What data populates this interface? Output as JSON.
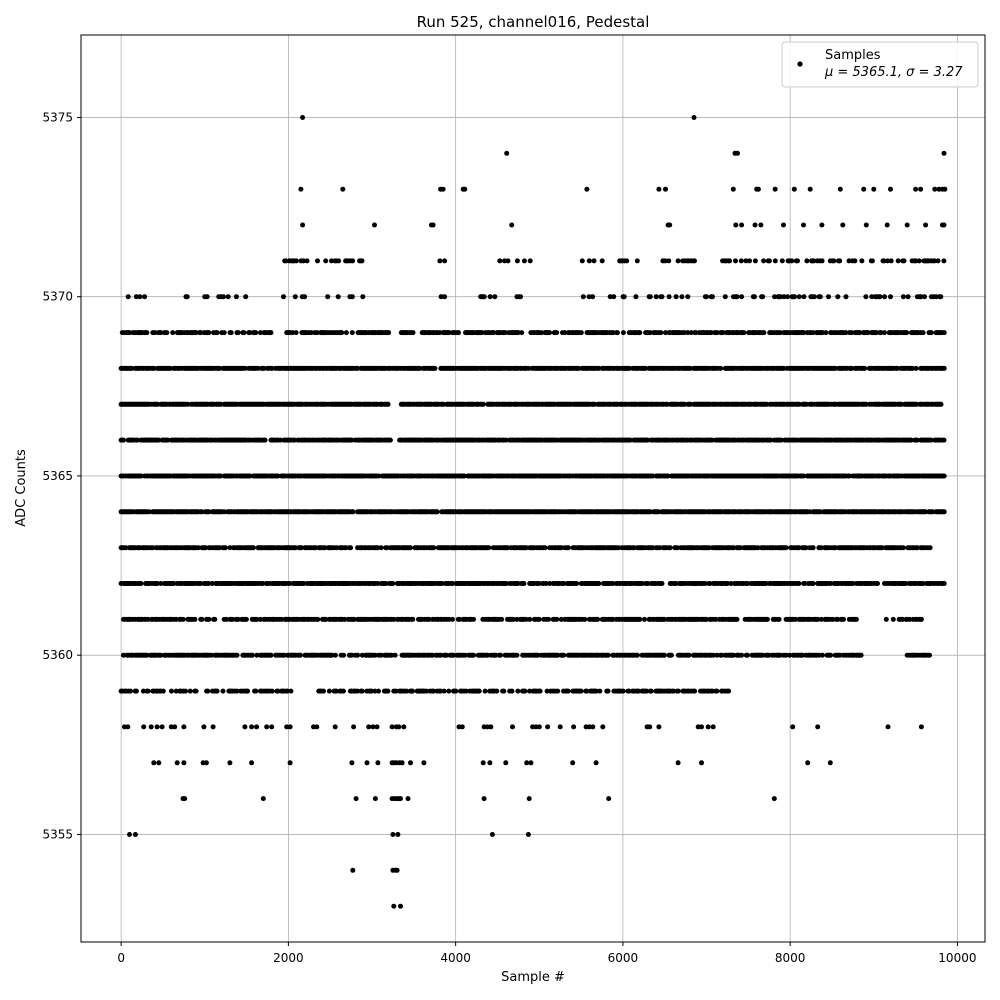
{
  "chart_data": {
    "type": "scatter",
    "title": "Run 525, channel016, Pedestal",
    "xlabel": "Sample #",
    "ylabel": "ADC Counts",
    "xlim": [
      -480,
      10330
    ],
    "ylim": [
      5352.0,
      5377.3
    ],
    "xticks": [
      0,
      2000,
      4000,
      6000,
      8000,
      10000
    ],
    "yticks": [
      5355,
      5360,
      5365,
      5370,
      5375
    ],
    "grid": true,
    "legend_position": "top-right",
    "marker_color": "#000000",
    "series": [
      {
        "name": "Samples",
        "legend_stats": "μ = 5365.1, σ = 3.27",
        "levels": [
          {
            "y": 5370,
            "segments": [
              [
                0,
                300
              ],
              [
                650,
                1500
              ],
              [
                1900,
                2250
              ],
              [
                2400,
                2900
              ],
              [
                3700,
                3900
              ],
              [
                4300,
                4900
              ],
              [
                5400,
                6200
              ],
              [
                6300,
                7700
              ],
              [
                7800,
                9850
              ]
            ],
            "density": 0.22
          },
          {
            "y": 5369,
            "segments": [
              [
                0,
                1800
              ],
              [
                1980,
                3200
              ],
              [
                3350,
                3500
              ],
              [
                3600,
                4800
              ],
              [
                4900,
                9850
              ]
            ],
            "density": 0.6
          },
          {
            "y": 5368,
            "segments": [
              [
                0,
                9850
              ]
            ],
            "density": 0.8
          },
          {
            "y": 5367,
            "segments": [
              [
                0,
                3200
              ],
              [
                3350,
                9850
              ]
            ],
            "density": 0.85
          },
          {
            "y": 5366,
            "segments": [
              [
                0,
                3220
              ],
              [
                3330,
                9850
              ]
            ],
            "density": 0.85
          },
          {
            "y": 5365,
            "segments": [
              [
                0,
                9850
              ]
            ],
            "density": 0.88
          },
          {
            "y": 5364,
            "segments": [
              [
                0,
                9850
              ]
            ],
            "density": 0.85
          },
          {
            "y": 5363,
            "segments": [
              [
                0,
                9700
              ]
            ],
            "density": 0.7
          },
          {
            "y": 5362,
            "segments": [
              [
                0,
                9850
              ]
            ],
            "density": 0.72
          },
          {
            "y": 5361,
            "segments": [
              [
                0,
                8800
              ],
              [
                9150,
                9600
              ]
            ],
            "density": 0.6
          },
          {
            "y": 5360,
            "segments": [
              [
                0,
                8900
              ],
              [
                9400,
                9700
              ]
            ],
            "density": 0.6
          },
          {
            "y": 5359,
            "segments": [
              [
                0,
                2050
              ],
              [
                2350,
                7300
              ]
            ],
            "density": 0.5
          },
          {
            "y": 5371,
            "segments": [
              [
                1900,
                2900
              ],
              [
                3700,
                4000
              ],
              [
                4500,
                4900
              ],
              [
                5500,
                6200
              ],
              [
                6450,
                7000
              ],
              [
                7150,
                9850
              ]
            ],
            "density": 0.3
          }
        ],
        "points": [
          [
            2170,
            5375
          ],
          [
            6850,
            5375
          ],
          [
            4610,
            5374
          ],
          [
            7340,
            5374
          ],
          [
            7370,
            5374
          ],
          [
            9840,
            5374
          ],
          [
            2150,
            5373
          ],
          [
            2650,
            5373
          ],
          [
            3820,
            5373
          ],
          [
            3850,
            5373
          ],
          [
            4090,
            5373
          ],
          [
            4110,
            5373
          ],
          [
            5570,
            5373
          ],
          [
            6430,
            5373
          ],
          [
            6510,
            5373
          ],
          [
            7320,
            5373
          ],
          [
            7600,
            5373
          ],
          [
            7620,
            5373
          ],
          [
            7820,
            5373
          ],
          [
            8050,
            5373
          ],
          [
            8240,
            5373
          ],
          [
            8600,
            5373
          ],
          [
            8880,
            5373
          ],
          [
            9000,
            5373
          ],
          [
            9200,
            5373
          ],
          [
            9500,
            5373
          ],
          [
            9560,
            5373
          ],
          [
            9730,
            5373
          ],
          [
            9780,
            5373
          ],
          [
            9820,
            5373
          ],
          [
            9850,
            5373
          ],
          [
            2170,
            5372
          ],
          [
            3030,
            5372
          ],
          [
            3710,
            5372
          ],
          [
            3730,
            5372
          ],
          [
            4670,
            5372
          ],
          [
            6540,
            5372
          ],
          [
            6560,
            5372
          ],
          [
            7350,
            5372
          ],
          [
            7420,
            5372
          ],
          [
            7580,
            5372
          ],
          [
            7650,
            5372
          ],
          [
            7920,
            5372
          ],
          [
            8160,
            5372
          ],
          [
            8380,
            5372
          ],
          [
            8630,
            5372
          ],
          [
            8910,
            5372
          ],
          [
            9160,
            5372
          ],
          [
            9400,
            5372
          ],
          [
            9620,
            5372
          ],
          [
            9820,
            5372
          ],
          [
            9840,
            5372
          ],
          [
            40,
            5358
          ],
          [
            80,
            5358
          ],
          [
            270,
            5358
          ],
          [
            360,
            5358
          ],
          [
            430,
            5358
          ],
          [
            490,
            5358
          ],
          [
            600,
            5358
          ],
          [
            640,
            5358
          ],
          [
            750,
            5358
          ],
          [
            990,
            5358
          ],
          [
            1100,
            5358
          ],
          [
            1480,
            5358
          ],
          [
            1560,
            5358
          ],
          [
            1620,
            5358
          ],
          [
            1740,
            5358
          ],
          [
            1800,
            5358
          ],
          [
            1980,
            5358
          ],
          [
            2020,
            5358
          ],
          [
            2300,
            5358
          ],
          [
            2340,
            5358
          ],
          [
            2560,
            5358
          ],
          [
            2780,
            5358
          ],
          [
            2960,
            5358
          ],
          [
            3010,
            5358
          ],
          [
            3060,
            5358
          ],
          [
            3240,
            5358
          ],
          [
            3290,
            5358
          ],
          [
            3320,
            5358
          ],
          [
            3380,
            5358
          ],
          [
            4040,
            5358
          ],
          [
            4080,
            5358
          ],
          [
            4340,
            5358
          ],
          [
            4380,
            5358
          ],
          [
            4420,
            5358
          ],
          [
            4680,
            5358
          ],
          [
            4920,
            5358
          ],
          [
            4960,
            5358
          ],
          [
            5000,
            5358
          ],
          [
            5100,
            5358
          ],
          [
            5250,
            5358
          ],
          [
            5410,
            5358
          ],
          [
            5560,
            5358
          ],
          [
            5600,
            5358
          ],
          [
            5640,
            5358
          ],
          [
            5760,
            5358
          ],
          [
            6290,
            5358
          ],
          [
            6320,
            5358
          ],
          [
            6430,
            5358
          ],
          [
            6900,
            5358
          ],
          [
            6940,
            5358
          ],
          [
            7020,
            5358
          ],
          [
            7080,
            5358
          ],
          [
            8030,
            5358
          ],
          [
            8330,
            5358
          ],
          [
            9170,
            5358
          ],
          [
            9570,
            5358
          ],
          [
            390,
            5357
          ],
          [
            450,
            5357
          ],
          [
            670,
            5357
          ],
          [
            750,
            5357
          ],
          [
            980,
            5357
          ],
          [
            1020,
            5357
          ],
          [
            1300,
            5357
          ],
          [
            1560,
            5357
          ],
          [
            2020,
            5357
          ],
          [
            2760,
            5357
          ],
          [
            2940,
            5357
          ],
          [
            3070,
            5357
          ],
          [
            3240,
            5357
          ],
          [
            3260,
            5357
          ],
          [
            3290,
            5357
          ],
          [
            3330,
            5357
          ],
          [
            3360,
            5357
          ],
          [
            3460,
            5357
          ],
          [
            3620,
            5357
          ],
          [
            4330,
            5357
          ],
          [
            4410,
            5357
          ],
          [
            4600,
            5357
          ],
          [
            4850,
            5357
          ],
          [
            4900,
            5357
          ],
          [
            5400,
            5357
          ],
          [
            5680,
            5357
          ],
          [
            6660,
            5357
          ],
          [
            6940,
            5357
          ],
          [
            8210,
            5357
          ],
          [
            8480,
            5357
          ],
          [
            740,
            5356
          ],
          [
            760,
            5356
          ],
          [
            1700,
            5356
          ],
          [
            2810,
            5356
          ],
          [
            3040,
            5356
          ],
          [
            3240,
            5356
          ],
          [
            3270,
            5356
          ],
          [
            3300,
            5356
          ],
          [
            3320,
            5356
          ],
          [
            3340,
            5356
          ],
          [
            3430,
            5356
          ],
          [
            4340,
            5356
          ],
          [
            4880,
            5356
          ],
          [
            5830,
            5356
          ],
          [
            7810,
            5356
          ],
          [
            100,
            5355
          ],
          [
            170,
            5355
          ],
          [
            3250,
            5355
          ],
          [
            3310,
            5355
          ],
          [
            4440,
            5355
          ],
          [
            4870,
            5355
          ],
          [
            2770,
            5354
          ],
          [
            3250,
            5354
          ],
          [
            3280,
            5354
          ],
          [
            3300,
            5354
          ],
          [
            3260,
            5353
          ],
          [
            3340,
            5353
          ]
        ]
      }
    ]
  }
}
